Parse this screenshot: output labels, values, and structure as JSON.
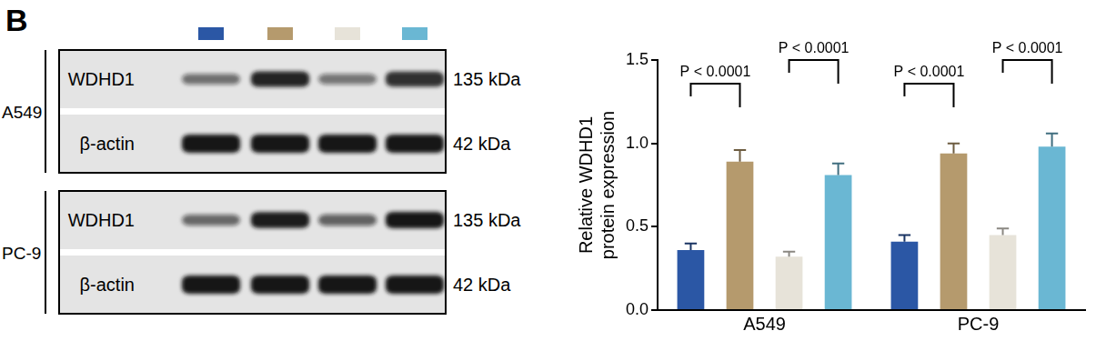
{
  "panel_label": "B",
  "blot": {
    "cell_lines": [
      "A549",
      "PC-9"
    ],
    "rows": [
      {
        "protein": "WDHD1",
        "size": "135 kDa"
      },
      {
        "protein": "β-actin",
        "size": "42 kDa"
      }
    ]
  },
  "chart_data": {
    "type": "bar",
    "y_label": [
      "Relative WDHD1",
      "protein expression"
    ],
    "categories": [
      "A549",
      "PC-9"
    ],
    "series": [
      {
        "color": "#2b57a5",
        "values": [
          0.36,
          0.41
        ],
        "errors": [
          0.04,
          0.04
        ]
      },
      {
        "color": "#b59a6d",
        "values": [
          0.89,
          0.94
        ],
        "errors": [
          0.07,
          0.06
        ]
      },
      {
        "color": "#e7e3d9",
        "values": [
          0.32,
          0.45
        ],
        "errors": [
          0.03,
          0.04
        ]
      },
      {
        "color": "#6ab7d3",
        "values": [
          0.81,
          0.98
        ],
        "errors": [
          0.07,
          0.08
        ]
      }
    ],
    "ylim": [
      0,
      1.5
    ],
    "yticks": [
      {
        "value": 0,
        "label": "0.0"
      },
      {
        "value": 0.5,
        "label": "0.5"
      },
      {
        "value": 1,
        "label": "1.0"
      },
      {
        "value": 1.5,
        "label": "1.5"
      }
    ],
    "grid": false,
    "annotations": [
      {
        "category": "A549",
        "from": 0,
        "to": 1,
        "text": "P < 0.0001"
      },
      {
        "category": "A549",
        "from": 2,
        "to": 3,
        "text": "P < 0.0001"
      },
      {
        "category": "PC-9",
        "from": 0,
        "to": 1,
        "text": "P < 0.0001"
      },
      {
        "category": "PC-9",
        "from": 2,
        "to": 3,
        "text": "P < 0.0001"
      }
    ]
  }
}
